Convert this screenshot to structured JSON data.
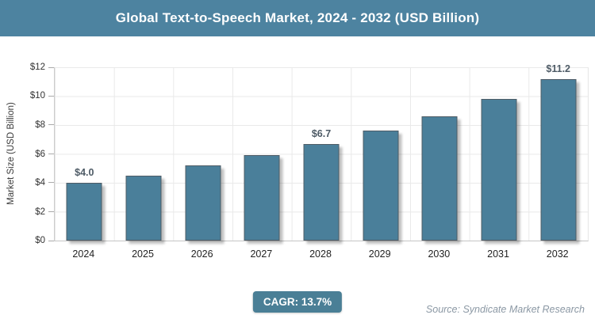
{
  "title_bar": {
    "text": "Global Text-to-Speech Market, 2024 - 2032 (USD Billion)",
    "bg_color": "#4d83a0",
    "text_color": "#ffffff"
  },
  "chart_data": {
    "type": "bar",
    "title": "Global Text-to-Speech Market, 2024 - 2032 (USD Billion)",
    "categories": [
      "2024",
      "2025",
      "2026",
      "2027",
      "2028",
      "2029",
      "2030",
      "2031",
      "2032"
    ],
    "values": [
      4.0,
      4.5,
      5.2,
      5.9,
      6.7,
      7.6,
      8.6,
      9.8,
      11.2
    ],
    "data_labels": [
      "$4.0",
      "",
      "",
      "",
      "$6.7",
      "",
      "",
      "",
      "$11.2"
    ],
    "xlabel": "",
    "ylabel": "Market Size (USD Billion)",
    "ylim": [
      0,
      12
    ],
    "y_tick_step": 2,
    "y_ticks": [
      "$0",
      "$2",
      "$4",
      "$6",
      "$8",
      "$10",
      "$12"
    ],
    "grid": true,
    "legend": false,
    "bar_color": "#4a7f9a"
  },
  "footer": {
    "cagr_label": "CAGR: 13.7%",
    "badge_color": "#4a7f96",
    "source": "Source: Syndicate Market Research"
  }
}
